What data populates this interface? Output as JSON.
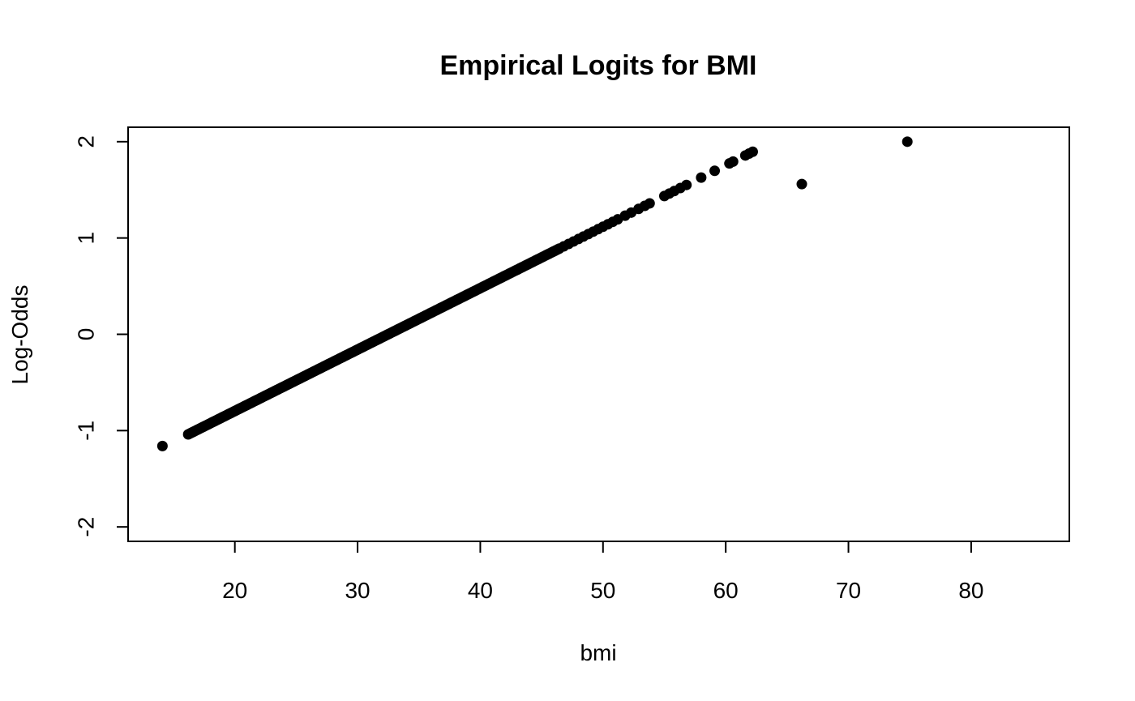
{
  "chart_data": {
    "type": "scatter",
    "title": "Empirical Logits for BMI",
    "xlabel": "bmi",
    "ylabel": "Log-Odds",
    "xlim": [
      11.3,
      88.0
    ],
    "ylim": [
      -2.15,
      2.15
    ],
    "x_ticks": [
      20,
      30,
      40,
      50,
      60,
      70,
      80
    ],
    "y_ticks": [
      -2,
      -1,
      0,
      1,
      2
    ],
    "grid": false,
    "line": {
      "x_start": 16.2,
      "x_end": 62.2,
      "y_at_x0": -2.0725,
      "slope": 0.06379
    },
    "points": [
      {
        "x": 14.1,
        "y": -1.16
      },
      {
        "x": 66.2,
        "y": 1.56
      },
      {
        "x": 74.8,
        "y": 2.0
      }
    ]
  }
}
